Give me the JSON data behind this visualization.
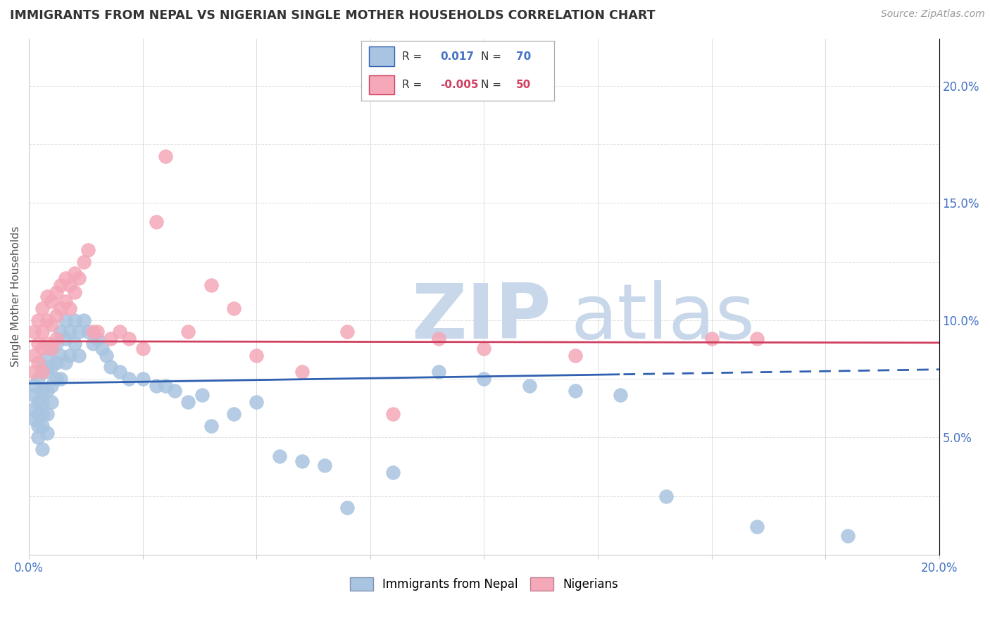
{
  "title": "IMMIGRANTS FROM NEPAL VS NIGERIAN SINGLE MOTHER HOUSEHOLDS CORRELATION CHART",
  "source": "Source: ZipAtlas.com",
  "ylabel": "Single Mother Households",
  "legend1_label": "Immigrants from Nepal",
  "legend2_label": "Nigerians",
  "r1": "0.017",
  "n1": "70",
  "r2": "-0.005",
  "n2": "50",
  "blue_color": "#a8c4e0",
  "pink_color": "#f4a8b8",
  "blue_line_color": "#3060b0",
  "pink_line_color": "#d04060",
  "watermark_zip": "ZIP",
  "watermark_atlas": "atlas",
  "watermark_color": "#c8d8ea",
  "title_color": "#333333",
  "source_color": "#999999",
  "axis_label_color": "#4472c4",
  "legend_r_color_blue": "#4472c4",
  "legend_r_color_pink": "#d04060",
  "nepal_x": [
    0.001,
    0.001,
    0.001,
    0.001,
    0.002,
    0.002,
    0.002,
    0.002,
    0.002,
    0.003,
    0.003,
    0.003,
    0.003,
    0.003,
    0.003,
    0.004,
    0.004,
    0.004,
    0.004,
    0.004,
    0.005,
    0.005,
    0.005,
    0.005,
    0.006,
    0.006,
    0.006,
    0.007,
    0.007,
    0.007,
    0.008,
    0.008,
    0.008,
    0.009,
    0.009,
    0.01,
    0.01,
    0.011,
    0.011,
    0.012,
    0.013,
    0.014,
    0.015,
    0.016,
    0.017,
    0.018,
    0.02,
    0.022,
    0.025,
    0.028,
    0.03,
    0.032,
    0.035,
    0.038,
    0.04,
    0.045,
    0.05,
    0.055,
    0.06,
    0.065,
    0.07,
    0.08,
    0.09,
    0.1,
    0.11,
    0.12,
    0.13,
    0.14,
    0.16,
    0.18
  ],
  "nepal_y": [
    0.072,
    0.068,
    0.062,
    0.058,
    0.075,
    0.065,
    0.06,
    0.055,
    0.05,
    0.08,
    0.07,
    0.065,
    0.06,
    0.055,
    0.045,
    0.085,
    0.078,
    0.07,
    0.06,
    0.052,
    0.088,
    0.08,
    0.072,
    0.065,
    0.09,
    0.082,
    0.075,
    0.095,
    0.085,
    0.075,
    0.1,
    0.092,
    0.082,
    0.095,
    0.085,
    0.1,
    0.09,
    0.095,
    0.085,
    0.1,
    0.095,
    0.09,
    0.092,
    0.088,
    0.085,
    0.08,
    0.078,
    0.075,
    0.075,
    0.072,
    0.072,
    0.07,
    0.065,
    0.068,
    0.055,
    0.06,
    0.065,
    0.042,
    0.04,
    0.038,
    0.02,
    0.035,
    0.078,
    0.075,
    0.072,
    0.07,
    0.068,
    0.025,
    0.012,
    0.008
  ],
  "nigeria_x": [
    0.001,
    0.001,
    0.001,
    0.002,
    0.002,
    0.002,
    0.003,
    0.003,
    0.003,
    0.003,
    0.004,
    0.004,
    0.004,
    0.005,
    0.005,
    0.005,
    0.006,
    0.006,
    0.006,
    0.007,
    0.007,
    0.008,
    0.008,
    0.009,
    0.009,
    0.01,
    0.01,
    0.011,
    0.012,
    0.013,
    0.014,
    0.015,
    0.018,
    0.02,
    0.022,
    0.025,
    0.028,
    0.03,
    0.035,
    0.04,
    0.045,
    0.05,
    0.06,
    0.07,
    0.08,
    0.09,
    0.1,
    0.12,
    0.15,
    0.16
  ],
  "nigeria_y": [
    0.095,
    0.085,
    0.078,
    0.1,
    0.09,
    0.082,
    0.105,
    0.095,
    0.088,
    0.078,
    0.11,
    0.1,
    0.09,
    0.108,
    0.098,
    0.088,
    0.112,
    0.102,
    0.092,
    0.115,
    0.105,
    0.118,
    0.108,
    0.115,
    0.105,
    0.12,
    0.112,
    0.118,
    0.125,
    0.13,
    0.095,
    0.095,
    0.092,
    0.095,
    0.092,
    0.088,
    0.142,
    0.17,
    0.095,
    0.115,
    0.105,
    0.085,
    0.078,
    0.095,
    0.06,
    0.092,
    0.088,
    0.085,
    0.092,
    0.092
  ],
  "xlim": [
    0.0,
    0.2
  ],
  "ylim": [
    0.0,
    0.22
  ],
  "xticks": [
    0.0,
    0.025,
    0.05,
    0.075,
    0.1,
    0.125,
    0.15,
    0.175,
    0.2
  ],
  "yticks_right": [
    0.05,
    0.1,
    0.15,
    0.2
  ],
  "ytick_labels_right": [
    "5.0%",
    "10.0%",
    "15.0%",
    "20.0%"
  ],
  "background_color": "#ffffff",
  "grid_color": "#e8e8e8"
}
